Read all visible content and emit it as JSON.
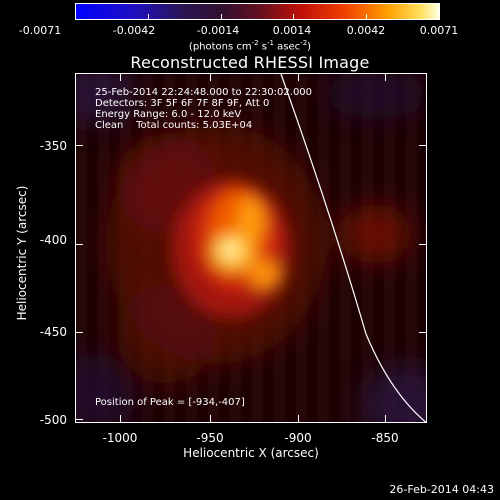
{
  "colorbar": {
    "tick_labels": [
      "-0.0071",
      "-0.0042",
      "-0.0014",
      "0.0014",
      "0.0042",
      "0.0071"
    ],
    "units_main": "(photons cm",
    "units_exp1": "-2",
    "units_mid": " s",
    "units_exp2": "-1",
    "units_mid2": " asec",
    "units_exp3": "-2",
    "units_end": ")"
  },
  "title": "Reconstructed RHESSI Image",
  "info": {
    "line1": "25-Feb-2014 22:24:48.000 to 22:30:02.000",
    "line2": "Detectors: 3F 5F 6F 7F 8F 9F, Att 0",
    "line3": "Energy Range: 6.0 - 12.0 keV",
    "line4": "Clean    Total counts: 5.03E+04"
  },
  "peak_label": "Position of Peak = [-934,-407]",
  "axes": {
    "y_title": "Heliocentric Y (arcsec)",
    "x_title": "Heliocentric X (arcsec)",
    "y_ticks": [
      "-350",
      "-400",
      "-450",
      "-500"
    ],
    "x_ticks": [
      "-1000",
      "-950",
      "-900",
      "-850"
    ]
  },
  "footer_date": "26-Feb-2014 04:43",
  "colors": {
    "background": "#000000",
    "frame": "#ffffff",
    "limb": "#ffffff"
  }
}
